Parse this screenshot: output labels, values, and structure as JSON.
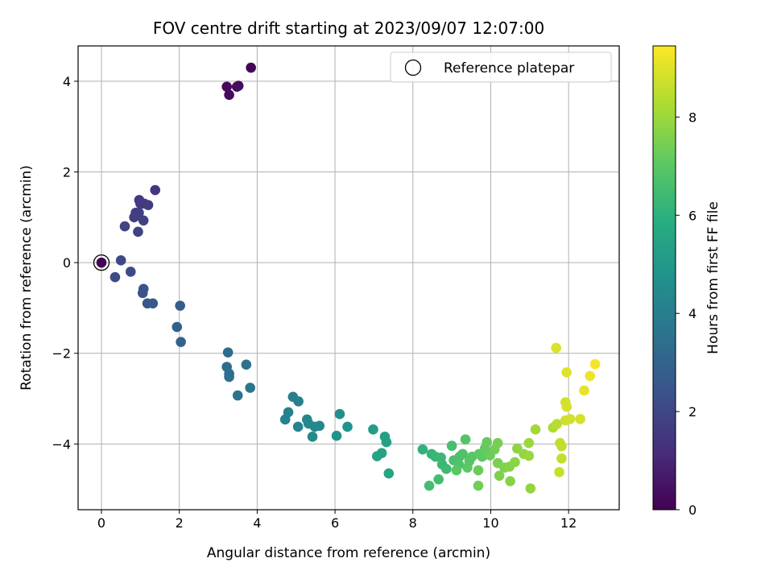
{
  "chart_data": {
    "type": "scatter",
    "title": "FOV centre drift starting at 2023/09/07 12:07:00",
    "xlabel": "Angular distance from reference (arcmin)",
    "ylabel": "Rotation from reference (arcmin)",
    "xlim": [
      -0.6,
      13.3
    ],
    "ylim": [
      -5.45,
      4.78
    ],
    "xticks": [
      0,
      2,
      4,
      6,
      8,
      10,
      12
    ],
    "yticks": [
      -4,
      -2,
      0,
      2,
      4
    ],
    "grid": true,
    "legend": {
      "entries": [
        "Reference platepar"
      ],
      "placement": "top-right"
    },
    "reference_point": {
      "x": 0,
      "y": 0
    },
    "colorbar": {
      "label": "Hours from first FF file",
      "colormap": "viridis",
      "range": [
        0,
        9.45
      ],
      "ticks": [
        0,
        2,
        4,
        6,
        8
      ]
    },
    "points": [
      {
        "x": 0.0,
        "y": 0.0,
        "h": 0.0
      },
      {
        "x": 3.22,
        "y": 3.88,
        "h": 0.2
      },
      {
        "x": 3.28,
        "y": 3.7,
        "h": 0.25
      },
      {
        "x": 3.48,
        "y": 3.88,
        "h": 0.3
      },
      {
        "x": 3.52,
        "y": 3.9,
        "h": 0.35
      },
      {
        "x": 3.84,
        "y": 4.3,
        "h": 0.1
      },
      {
        "x": 1.38,
        "y": 1.6,
        "h": 1.5
      },
      {
        "x": 0.97,
        "y": 1.38,
        "h": 1.55
      },
      {
        "x": 1.0,
        "y": 1.3,
        "h": 1.6
      },
      {
        "x": 1.1,
        "y": 1.3,
        "h": 1.6
      },
      {
        "x": 1.2,
        "y": 1.27,
        "h": 1.65
      },
      {
        "x": 0.88,
        "y": 1.1,
        "h": 1.7
      },
      {
        "x": 0.96,
        "y": 1.1,
        "h": 1.7
      },
      {
        "x": 0.84,
        "y": 1.0,
        "h": 1.75
      },
      {
        "x": 1.08,
        "y": 0.93,
        "h": 1.8
      },
      {
        "x": 0.6,
        "y": 0.8,
        "h": 1.9
      },
      {
        "x": 0.94,
        "y": 0.68,
        "h": 1.85
      },
      {
        "x": 0.5,
        "y": 0.05,
        "h": 2.05
      },
      {
        "x": 0.35,
        "y": -0.32,
        "h": 2.1
      },
      {
        "x": 0.75,
        "y": -0.2,
        "h": 2.15
      },
      {
        "x": 1.08,
        "y": -0.58,
        "h": 2.4
      },
      {
        "x": 1.06,
        "y": -0.67,
        "h": 2.45
      },
      {
        "x": 1.18,
        "y": -0.9,
        "h": 2.55
      },
      {
        "x": 1.32,
        "y": -0.9,
        "h": 2.6
      },
      {
        "x": 2.02,
        "y": -0.95,
        "h": 2.8
      },
      {
        "x": 1.94,
        "y": -1.42,
        "h": 2.9
      },
      {
        "x": 2.04,
        "y": -1.75,
        "h": 3.0
      },
      {
        "x": 3.25,
        "y": -1.98,
        "h": 3.3
      },
      {
        "x": 3.22,
        "y": -2.3,
        "h": 3.35
      },
      {
        "x": 3.28,
        "y": -2.45,
        "h": 3.4
      },
      {
        "x": 3.28,
        "y": -2.52,
        "h": 3.4
      },
      {
        "x": 3.72,
        "y": -2.25,
        "h": 3.5
      },
      {
        "x": 3.5,
        "y": -2.93,
        "h": 3.6
      },
      {
        "x": 3.82,
        "y": -2.76,
        "h": 3.65
      },
      {
        "x": 4.92,
        "y": -2.96,
        "h": 4.0
      },
      {
        "x": 5.06,
        "y": -3.06,
        "h": 4.05
      },
      {
        "x": 4.8,
        "y": -3.3,
        "h": 4.1
      },
      {
        "x": 4.72,
        "y": -3.46,
        "h": 4.15
      },
      {
        "x": 5.05,
        "y": -3.62,
        "h": 4.2
      },
      {
        "x": 5.28,
        "y": -3.46,
        "h": 4.25
      },
      {
        "x": 5.32,
        "y": -3.55,
        "h": 4.3
      },
      {
        "x": 5.48,
        "y": -3.62,
        "h": 4.35
      },
      {
        "x": 5.6,
        "y": -3.6,
        "h": 4.4
      },
      {
        "x": 5.42,
        "y": -3.84,
        "h": 4.45
      },
      {
        "x": 6.12,
        "y": -3.34,
        "h": 4.7
      },
      {
        "x": 6.32,
        "y": -3.62,
        "h": 4.8
      },
      {
        "x": 6.04,
        "y": -3.82,
        "h": 4.9
      },
      {
        "x": 6.98,
        "y": -3.68,
        "h": 5.2
      },
      {
        "x": 7.28,
        "y": -3.84,
        "h": 5.3
      },
      {
        "x": 7.32,
        "y": -3.96,
        "h": 5.35
      },
      {
        "x": 7.2,
        "y": -4.2,
        "h": 5.4
      },
      {
        "x": 7.08,
        "y": -4.27,
        "h": 5.45
      },
      {
        "x": 7.38,
        "y": -4.65,
        "h": 5.5
      },
      {
        "x": 8.25,
        "y": -4.12,
        "h": 6.1
      },
      {
        "x": 8.48,
        "y": -4.22,
        "h": 6.2
      },
      {
        "x": 8.58,
        "y": -4.28,
        "h": 6.25
      },
      {
        "x": 8.72,
        "y": -4.3,
        "h": 6.3
      },
      {
        "x": 8.75,
        "y": -4.45,
        "h": 6.35
      },
      {
        "x": 8.86,
        "y": -4.55,
        "h": 6.4
      },
      {
        "x": 8.66,
        "y": -4.78,
        "h": 6.5
      },
      {
        "x": 8.42,
        "y": -4.92,
        "h": 6.55
      },
      {
        "x": 9.0,
        "y": -4.04,
        "h": 6.6
      },
      {
        "x": 9.05,
        "y": -4.36,
        "h": 6.65
      },
      {
        "x": 9.2,
        "y": -4.28,
        "h": 6.7
      },
      {
        "x": 9.28,
        "y": -4.22,
        "h": 6.75
      },
      {
        "x": 9.18,
        "y": -4.45,
        "h": 6.8
      },
      {
        "x": 9.35,
        "y": -3.9,
        "h": 6.85
      },
      {
        "x": 9.45,
        "y": -4.38,
        "h": 6.9
      },
      {
        "x": 9.52,
        "y": -4.28,
        "h": 6.95
      },
      {
        "x": 9.4,
        "y": -4.52,
        "h": 7.0
      },
      {
        "x": 9.12,
        "y": -4.58,
        "h": 7.0
      },
      {
        "x": 9.7,
        "y": -4.22,
        "h": 7.05
      },
      {
        "x": 9.78,
        "y": -4.28,
        "h": 7.1
      },
      {
        "x": 9.85,
        "y": -4.1,
        "h": 7.15
      },
      {
        "x": 9.9,
        "y": -3.96,
        "h": 7.2
      },
      {
        "x": 9.98,
        "y": -4.25,
        "h": 7.25
      },
      {
        "x": 9.68,
        "y": -4.58,
        "h": 7.3
      },
      {
        "x": 9.68,
        "y": -4.92,
        "h": 7.35
      },
      {
        "x": 10.1,
        "y": -4.12,
        "h": 7.4
      },
      {
        "x": 10.18,
        "y": -3.98,
        "h": 7.45
      },
      {
        "x": 10.18,
        "y": -4.42,
        "h": 7.5
      },
      {
        "x": 10.22,
        "y": -4.7,
        "h": 7.55
      },
      {
        "x": 10.35,
        "y": -4.52,
        "h": 7.6
      },
      {
        "x": 10.48,
        "y": -4.5,
        "h": 7.65
      },
      {
        "x": 10.5,
        "y": -4.82,
        "h": 7.7
      },
      {
        "x": 10.62,
        "y": -4.4,
        "h": 7.75
      },
      {
        "x": 10.68,
        "y": -4.1,
        "h": 7.8
      },
      {
        "x": 10.85,
        "y": -4.22,
        "h": 7.9
      },
      {
        "x": 10.98,
        "y": -4.26,
        "h": 7.95
      },
      {
        "x": 10.98,
        "y": -3.98,
        "h": 8.0
      },
      {
        "x": 11.02,
        "y": -4.98,
        "h": 7.85
      },
      {
        "x": 11.15,
        "y": -3.68,
        "h": 8.1
      },
      {
        "x": 11.6,
        "y": -3.64,
        "h": 8.3
      },
      {
        "x": 11.7,
        "y": -3.56,
        "h": 8.4
      },
      {
        "x": 11.78,
        "y": -3.98,
        "h": 8.5
      },
      {
        "x": 11.82,
        "y": -4.05,
        "h": 8.55
      },
      {
        "x": 11.82,
        "y": -4.32,
        "h": 8.6
      },
      {
        "x": 11.76,
        "y": -4.62,
        "h": 8.65
      },
      {
        "x": 11.68,
        "y": -1.88,
        "h": 8.95
      },
      {
        "x": 11.95,
        "y": -2.42,
        "h": 9.0
      },
      {
        "x": 11.92,
        "y": -3.08,
        "h": 8.8
      },
      {
        "x": 11.95,
        "y": -3.18,
        "h": 8.85
      },
      {
        "x": 11.92,
        "y": -3.48,
        "h": 8.75
      },
      {
        "x": 12.04,
        "y": -3.45,
        "h": 8.8
      },
      {
        "x": 12.3,
        "y": -3.45,
        "h": 8.85
      },
      {
        "x": 12.4,
        "y": -2.82,
        "h": 9.1
      },
      {
        "x": 12.55,
        "y": -2.5,
        "h": 9.2
      },
      {
        "x": 12.68,
        "y": -2.24,
        "h": 9.3
      }
    ]
  }
}
